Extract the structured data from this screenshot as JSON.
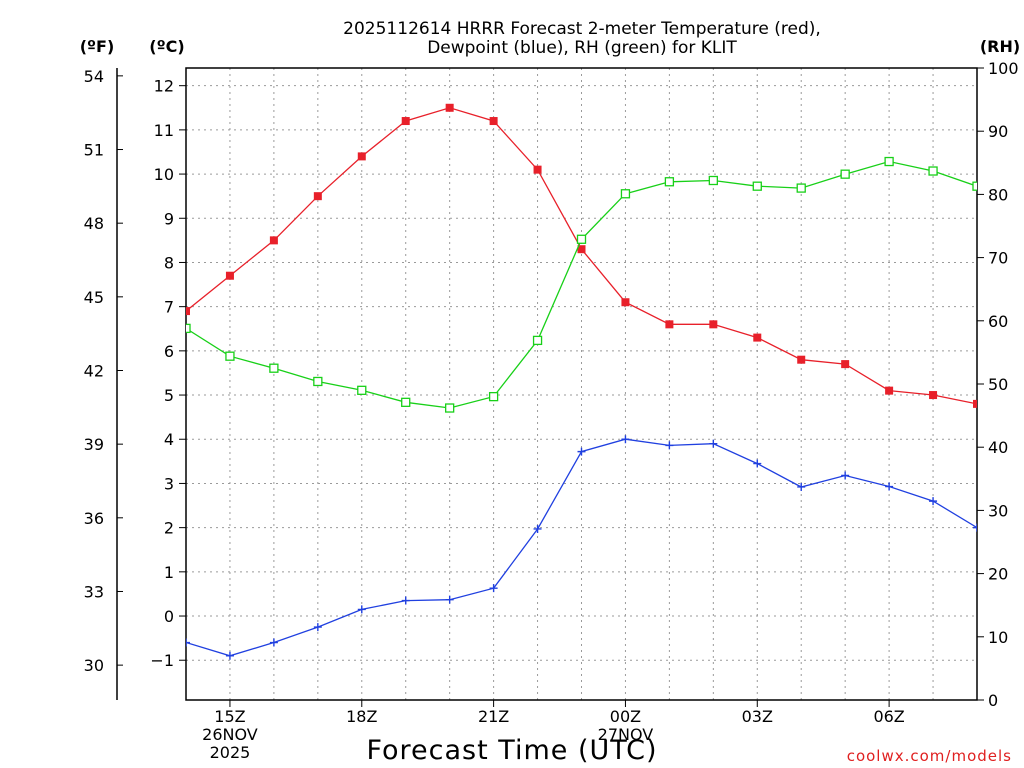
{
  "chart_data": {
    "type": "line",
    "title_lines": [
      "2025112614 HRRR Forecast 2-meter Temperature (red),",
      "Dewpoint (blue), RH (green) for KLIT"
    ],
    "xlabel": "Forecast Time (UTC)",
    "credit": "coolwx.com/models",
    "axis_units": {
      "left_f": "(ºF)",
      "left_c": "(ºC)",
      "right_rh": "(RH)"
    },
    "x_hours": [
      14,
      15,
      16,
      17,
      18,
      19,
      20,
      21,
      22,
      23,
      24,
      25,
      26,
      27,
      28,
      29,
      30,
      31,
      32
    ],
    "x_range": [
      14,
      32
    ],
    "x_ticks": [
      {
        "hour": 15,
        "lines": [
          "15Z",
          "26NOV",
          "2025"
        ]
      },
      {
        "hour": 18,
        "lines": [
          "18Z"
        ]
      },
      {
        "hour": 21,
        "lines": [
          "21Z"
        ]
      },
      {
        "hour": 24,
        "lines": [
          "00Z",
          "27NOV"
        ]
      },
      {
        "hour": 27,
        "lines": [
          "03Z"
        ]
      },
      {
        "hour": 30,
        "lines": [
          "06Z"
        ]
      }
    ],
    "celsius_axis": {
      "range": [
        -1.9,
        12.4
      ],
      "ticks": [
        -1,
        0,
        1,
        2,
        3,
        4,
        5,
        6,
        7,
        8,
        9,
        10,
        11,
        12
      ]
    },
    "fahrenheit_axis": {
      "ticks": [
        30,
        33,
        36,
        39,
        42,
        45,
        48,
        51,
        54
      ]
    },
    "rh_axis": {
      "range": [
        0,
        100
      ],
      "ticks": [
        0,
        10,
        20,
        30,
        40,
        50,
        60,
        70,
        80,
        90,
        100
      ]
    },
    "series": [
      {
        "name": "Temperature",
        "units": "C",
        "color": "#e8202a",
        "marker": "filled-square",
        "values": [
          6.9,
          7.7,
          8.5,
          9.5,
          10.4,
          11.2,
          11.5,
          11.2,
          10.1,
          8.3,
          7.1,
          6.6,
          6.6,
          6.3,
          5.8,
          5.7,
          5.1,
          5.0,
          4.8
        ]
      },
      {
        "name": "Dewpoint",
        "units": "C",
        "color": "#2040e0",
        "marker": "plus",
        "values": [
          -0.6,
          -0.9,
          -0.6,
          -0.25,
          0.15,
          0.35,
          0.37,
          0.63,
          1.97,
          3.72,
          4.0,
          3.86,
          3.9,
          3.45,
          2.92,
          3.18,
          2.93,
          2.6,
          2.0
        ]
      },
      {
        "name": "RH",
        "units": "%",
        "color": "#18d018",
        "marker": "open-square",
        "values": [
          58.8,
          54.4,
          52.5,
          50.4,
          49.0,
          47.1,
          46.2,
          48.0,
          56.9,
          72.9,
          80.1,
          82.0,
          82.2,
          81.3,
          81.0,
          83.2,
          85.2,
          83.7,
          81.3
        ]
      }
    ]
  }
}
